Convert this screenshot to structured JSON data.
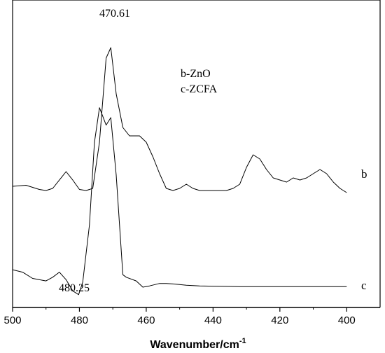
{
  "chart_data": {
    "type": "line",
    "title": "",
    "xlabel": "Wavenumber/cm",
    "xlabel_superscript": "-1",
    "ylabel": "",
    "xlim": [
      500,
      390
    ],
    "x_ticks": [
      500,
      480,
      460,
      440,
      420,
      400
    ],
    "y_axis_visible": false,
    "grid": false,
    "legend_lines": [
      "b-ZnO",
      "c-ZCFA"
    ],
    "annotations": [
      {
        "text": "470.61",
        "x": 470.61,
        "series": "b"
      },
      {
        "text": "480.25",
        "x": 480.25,
        "series": "c"
      }
    ],
    "series": [
      {
        "name": "b",
        "x": [
          500,
          496,
          492,
          490,
          488,
          484,
          482,
          480,
          478,
          476,
          474,
          472,
          470.61,
          469,
          467,
          465,
          462,
          460,
          458,
          456,
          454,
          452,
          450,
          448,
          446,
          444,
          442,
          440,
          438,
          436,
          434,
          432,
          430,
          428,
          426,
          424,
          422,
          420,
          418,
          416,
          414,
          412,
          410,
          408,
          406,
          404,
          402,
          400
        ],
        "y": [
          0.34,
          0.345,
          0.325,
          0.32,
          0.33,
          0.41,
          0.37,
          0.325,
          0.32,
          0.33,
          0.55,
          0.95,
          1.0,
          0.78,
          0.62,
          0.58,
          0.58,
          0.55,
          0.48,
          0.4,
          0.33,
          0.32,
          0.33,
          0.35,
          0.33,
          0.32,
          0.32,
          0.32,
          0.32,
          0.32,
          0.33,
          0.35,
          0.43,
          0.49,
          0.47,
          0.42,
          0.38,
          0.37,
          0.36,
          0.38,
          0.37,
          0.38,
          0.4,
          0.42,
          0.4,
          0.36,
          0.33,
          0.31
        ]
      },
      {
        "name": "c",
        "x": [
          500,
          497,
          494,
          490,
          488,
          486,
          484,
          482,
          480.25,
          479,
          477,
          475.5,
          474,
          472,
          470.61,
          469,
          467,
          466,
          463,
          461,
          459,
          456,
          454,
          452,
          448,
          444,
          440,
          436,
          432,
          428,
          424,
          420,
          416,
          412,
          408,
          404,
          400
        ],
        "y": [
          0.07,
          0.06,
          0.035,
          0.025,
          0.04,
          0.06,
          0.03,
          -0.015,
          -0.03,
          0.02,
          0.25,
          0.58,
          0.72,
          0.65,
          0.68,
          0.45,
          0.05,
          0.04,
          0.025,
          0.0,
          0.005,
          0.015,
          0.015,
          0.013,
          0.008,
          0.005,
          0.004,
          0.003,
          0.002,
          0.002,
          0.002,
          0.002,
          0.002,
          0.002,
          0.002,
          0.002,
          0.002
        ]
      }
    ]
  }
}
